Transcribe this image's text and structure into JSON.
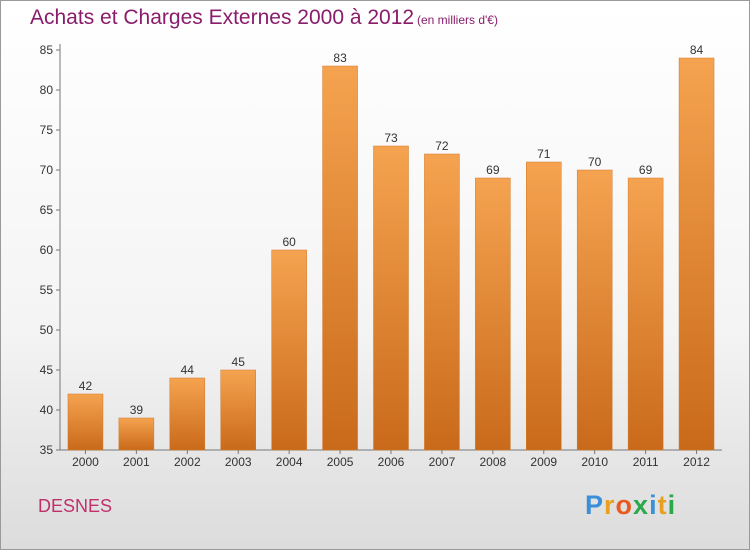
{
  "chart_data": {
    "type": "bar",
    "title": "Achats et Charges Externes 2000 à 2012",
    "subtitle": "(en milliers d'€)",
    "xlabel": "",
    "ylabel": "",
    "categories": [
      "2000",
      "2001",
      "2002",
      "2003",
      "2004",
      "2005",
      "2006",
      "2007",
      "2008",
      "2009",
      "2010",
      "2011",
      "2012"
    ],
    "values": [
      42,
      39,
      44,
      45,
      60,
      83,
      73,
      72,
      69,
      71,
      70,
      69,
      84
    ],
    "ylim": [
      35,
      85
    ],
    "yticks": [
      35,
      40,
      45,
      50,
      55,
      60,
      65,
      70,
      75,
      80,
      85
    ],
    "grid": false,
    "legend": "none",
    "bar_color_top": "#f5a350",
    "bar_color_bottom": "#c96a1a"
  },
  "footer": {
    "city": "DESNES",
    "logo_letters": [
      "P",
      "r",
      "o",
      "x",
      "i",
      "t",
      "i"
    ],
    "logo_colors": [
      "#3a8fd8",
      "#e8a020",
      "#e85a20",
      "#2aa84a",
      "#3a8fd8",
      "#e8a020",
      "#2aa84a"
    ]
  }
}
